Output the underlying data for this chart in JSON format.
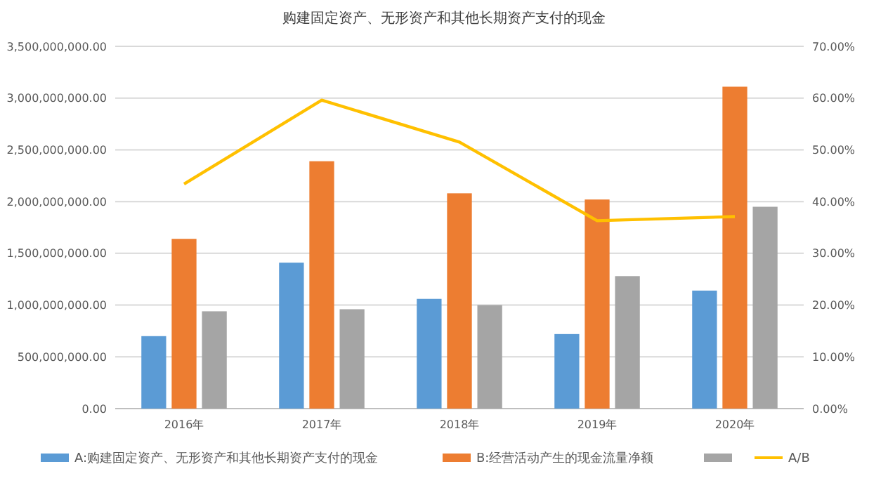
{
  "chart_data": {
    "type": "bar",
    "title": "购建固定资产、无形资产和其他长期资产支付的现金",
    "categories": [
      "2016年",
      "2017年",
      "2018年",
      "2019年",
      "2020年"
    ],
    "series": [
      {
        "name": "A:购建固定资产、无形资产和其他长期资产支付的现金",
        "color": "#5b9bd5",
        "values": [
          700000000,
          1410000000,
          1060000000,
          720000000,
          1140000000
        ]
      },
      {
        "name": "B:经营活动产生的现金流量净额",
        "color": "#ed7d31",
        "values": [
          1640000000,
          2390000000,
          2080000000,
          2020000000,
          3110000000
        ]
      },
      {
        "color": "#a5a5a5",
        "values": [
          940000000,
          960000000,
          1000000000,
          1280000000,
          1950000000
        ]
      },
      {
        "name": "A/B",
        "type": "line",
        "axis": "y2",
        "color": "#ffc000",
        "values": [
          43.4,
          59.6,
          51.5,
          36.3,
          37.1
        ]
      }
    ],
    "ylim": [
      0,
      3500000000
    ],
    "yticks": [
      {
        "value": 0,
        "label": "0.00"
      },
      {
        "value": 500000000,
        "label": "500,000,000.00"
      },
      {
        "value": 1000000000,
        "label": "1,000,000,000.00"
      },
      {
        "value": 1500000000,
        "label": "1,500,000,000.00"
      },
      {
        "value": 2000000000,
        "label": "2,000,000,000.00"
      },
      {
        "value": 2500000000,
        "label": "2,500,000,000.00"
      },
      {
        "value": 3000000000,
        "label": "3,000,000,000.00"
      },
      {
        "value": 3500000000,
        "label": "3,500,000,000.00"
      }
    ],
    "y2lim": [
      0,
      70
    ],
    "y2ticks": [
      {
        "value": 0,
        "label": "0.00%"
      },
      {
        "value": 10,
        "label": "10.00%"
      },
      {
        "value": 20,
        "label": "20.00%"
      },
      {
        "value": 30,
        "label": "30.00%"
      },
      {
        "value": 40,
        "label": "40.00%"
      },
      {
        "value": 50,
        "label": "50.00%"
      },
      {
        "value": 60,
        "label": "60.00%"
      },
      {
        "value": 70,
        "label": "70.00%"
      }
    ],
    "grid": "y",
    "legend": "bottom",
    "marker": "none"
  }
}
